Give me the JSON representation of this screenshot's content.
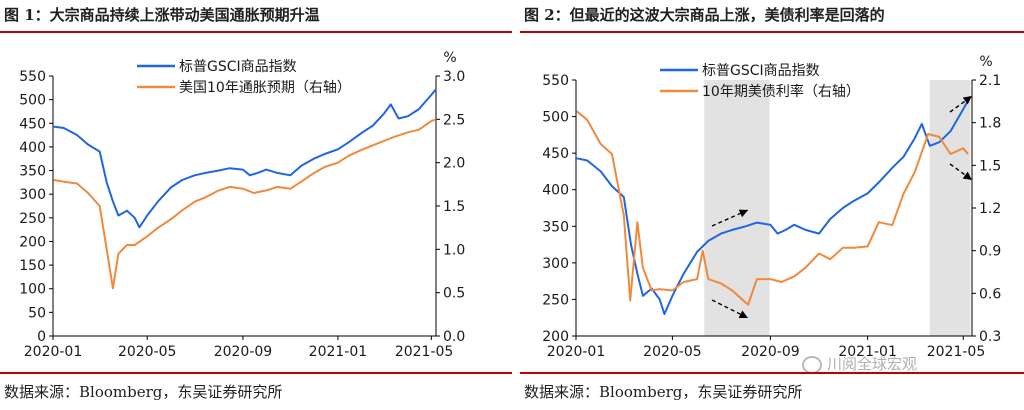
{
  "colors": {
    "blue": "#1f66e0",
    "orange": "#ef8a3d",
    "red_rule": "#c00000",
    "shade": "#e2e2e2"
  },
  "chart_data": [
    {
      "type": "line",
      "title": "图 1：大宗商品持续上涨带动美国通胀预期升温",
      "source": "数据来源：Bloomberg，东吴证券研究所",
      "right_axis_unit": "%",
      "x_ticks": [
        "2020-01",
        "2020-05",
        "2020-09",
        "2021-01",
        "2021-05"
      ],
      "left_axis": {
        "ylim": [
          0,
          550
        ],
        "ticks": [
          "0",
          "50",
          "100",
          "150",
          "200",
          "250",
          "300",
          "350",
          "400",
          "450",
          "500",
          "550"
        ]
      },
      "right_axis": {
        "ylim": [
          0.0,
          3.0
        ],
        "ticks": [
          "0.0",
          "0.5",
          "1.0",
          "1.5",
          "2.0",
          "2.5",
          "3.0"
        ]
      },
      "legend_position": "top-left",
      "series": [
        {
          "name": "标普GSCI商品指数",
          "axis": "left",
          "color": "#1f66e0",
          "x": [
            "2020-01-02",
            "2020-01-15",
            "2020-02-01",
            "2020-02-15",
            "2020-03-01",
            "2020-03-10",
            "2020-03-18",
            "2020-03-25",
            "2020-04-05",
            "2020-04-15",
            "2020-04-21",
            "2020-05-01",
            "2020-05-15",
            "2020-06-01",
            "2020-06-15",
            "2020-07-01",
            "2020-07-15",
            "2020-08-01",
            "2020-08-15",
            "2020-09-01",
            "2020-09-10",
            "2020-09-20",
            "2020-10-01",
            "2020-10-15",
            "2020-11-01",
            "2020-11-15",
            "2020-12-01",
            "2020-12-15",
            "2021-01-01",
            "2021-01-15",
            "2021-02-01",
            "2021-02-15",
            "2021-03-01",
            "2021-03-10",
            "2021-03-20",
            "2021-04-01",
            "2021-04-15",
            "2021-05-01",
            "2021-05-07"
          ],
          "values": [
            443,
            440,
            425,
            405,
            390,
            325,
            285,
            255,
            265,
            250,
            230,
            255,
            285,
            315,
            330,
            340,
            345,
            350,
            355,
            352,
            340,
            345,
            352,
            345,
            340,
            360,
            375,
            385,
            395,
            410,
            430,
            445,
            470,
            490,
            460,
            465,
            480,
            510,
            522
          ]
        },
        {
          "name": "美国10年通胀预期（右轴）",
          "axis": "right",
          "color": "#ef8a3d",
          "x": [
            "2020-01-02",
            "2020-01-15",
            "2020-02-01",
            "2020-02-15",
            "2020-03-01",
            "2020-03-10",
            "2020-03-18",
            "2020-03-25",
            "2020-04-05",
            "2020-04-15",
            "2020-05-01",
            "2020-05-15",
            "2020-06-01",
            "2020-06-15",
            "2020-07-01",
            "2020-07-15",
            "2020-08-01",
            "2020-08-15",
            "2020-09-01",
            "2020-09-15",
            "2020-10-01",
            "2020-10-15",
            "2020-11-01",
            "2020-11-15",
            "2020-12-01",
            "2020-12-15",
            "2021-01-01",
            "2021-01-15",
            "2021-02-01",
            "2021-02-15",
            "2021-03-01",
            "2021-03-15",
            "2021-04-01",
            "2021-04-15",
            "2021-05-01",
            "2021-05-07"
          ],
          "values": [
            1.8,
            1.78,
            1.76,
            1.65,
            1.5,
            1.0,
            0.55,
            0.95,
            1.05,
            1.05,
            1.15,
            1.25,
            1.35,
            1.45,
            1.55,
            1.6,
            1.68,
            1.72,
            1.7,
            1.65,
            1.68,
            1.72,
            1.7,
            1.78,
            1.88,
            1.95,
            2.0,
            2.08,
            2.15,
            2.2,
            2.25,
            2.3,
            2.35,
            2.38,
            2.48,
            2.5
          ]
        }
      ]
    },
    {
      "type": "line",
      "title": "图 2：但最近的这波大宗商品上涨，美债利率是回落的",
      "source": "数据来源：Bloomberg，东吴证券研究所",
      "right_axis_unit": "%",
      "watermark": "川阅全球宏观",
      "x_ticks": [
        "2020-01",
        "2020-05",
        "2020-09",
        "2021-01",
        "2021-05"
      ],
      "left_axis": {
        "ylim": [
          200,
          550
        ],
        "ticks": [
          "200",
          "250",
          "300",
          "350",
          "400",
          "450",
          "500",
          "550"
        ]
      },
      "right_axis": {
        "ylim": [
          0.3,
          2.1
        ],
        "ticks": [
          "0.3",
          "0.6",
          "0.9",
          "1.2",
          "1.5",
          "1.8",
          "2.1"
        ]
      },
      "legend_position": "top-left",
      "shaded_periods": [
        [
          "2020-06-10",
          "2020-08-31"
        ],
        [
          "2021-03-20",
          "2021-05-10"
        ]
      ],
      "series": [
        {
          "name": "标普GSCI商品指数",
          "axis": "left",
          "color": "#1f66e0",
          "x": [
            "2020-01-02",
            "2020-01-15",
            "2020-02-01",
            "2020-02-15",
            "2020-03-01",
            "2020-03-10",
            "2020-03-18",
            "2020-03-25",
            "2020-04-05",
            "2020-04-15",
            "2020-04-21",
            "2020-05-01",
            "2020-05-15",
            "2020-06-01",
            "2020-06-15",
            "2020-07-01",
            "2020-07-15",
            "2020-08-01",
            "2020-08-15",
            "2020-09-01",
            "2020-09-10",
            "2020-09-20",
            "2020-10-01",
            "2020-10-15",
            "2020-11-01",
            "2020-11-15",
            "2020-12-01",
            "2020-12-15",
            "2021-01-01",
            "2021-01-15",
            "2021-02-01",
            "2021-02-15",
            "2021-03-01",
            "2021-03-10",
            "2021-03-20",
            "2021-04-01",
            "2021-04-15",
            "2021-05-01",
            "2021-05-07"
          ],
          "values": [
            443,
            440,
            425,
            405,
            390,
            325,
            285,
            255,
            265,
            250,
            230,
            255,
            285,
            315,
            330,
            340,
            345,
            350,
            355,
            352,
            340,
            345,
            352,
            345,
            340,
            360,
            375,
            385,
            395,
            410,
            430,
            445,
            470,
            490,
            460,
            465,
            480,
            510,
            522
          ]
        },
        {
          "name": "10年期美债利率（右轴）",
          "axis": "right",
          "color": "#ef8a3d",
          "x": [
            "2020-01-02",
            "2020-01-15",
            "2020-02-01",
            "2020-02-15",
            "2020-03-01",
            "2020-03-09",
            "2020-03-18",
            "2020-03-25",
            "2020-04-05",
            "2020-04-15",
            "2020-05-01",
            "2020-05-15",
            "2020-06-01",
            "2020-06-08",
            "2020-06-15",
            "2020-07-01",
            "2020-07-15",
            "2020-08-04",
            "2020-08-15",
            "2020-09-01",
            "2020-09-15",
            "2020-10-01",
            "2020-10-15",
            "2020-11-01",
            "2020-11-15",
            "2020-12-01",
            "2020-12-15",
            "2021-01-01",
            "2021-01-15",
            "2021-02-01",
            "2021-02-15",
            "2021-03-01",
            "2021-03-18",
            "2021-04-01",
            "2021-04-15",
            "2021-05-01",
            "2021-05-07"
          ],
          "values": [
            1.88,
            1.82,
            1.65,
            1.58,
            1.15,
            0.55,
            1.1,
            0.78,
            0.62,
            0.63,
            0.62,
            0.68,
            0.7,
            0.9,
            0.7,
            0.67,
            0.62,
            0.52,
            0.7,
            0.7,
            0.68,
            0.72,
            0.78,
            0.88,
            0.84,
            0.92,
            0.92,
            0.93,
            1.1,
            1.08,
            1.3,
            1.45,
            1.72,
            1.7,
            1.58,
            1.62,
            1.58
          ]
        }
      ]
    }
  ]
}
